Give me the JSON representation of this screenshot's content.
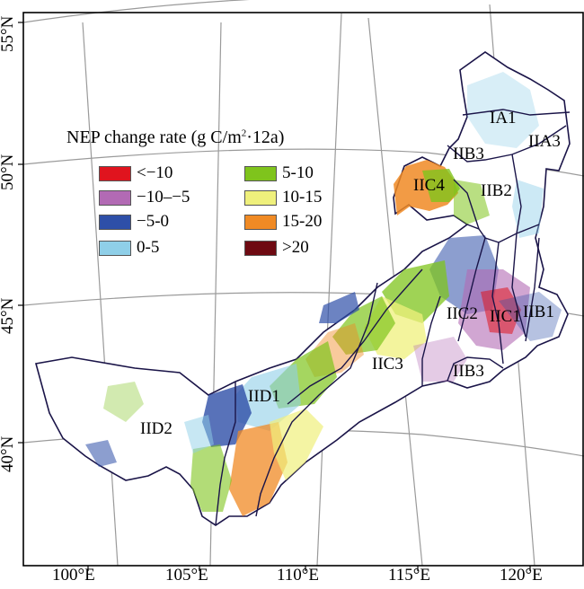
{
  "map": {
    "legend": {
      "title_main": "NEP change rate (g C/m",
      "title_sup": "2",
      "title_tail": "·12a)",
      "items": [
        {
          "label": "<−10",
          "color": "#e0141e"
        },
        {
          "label": "5-10",
          "color": "#7fc41c"
        },
        {
          "label": "−10–−5",
          "color": "#b26ab4"
        },
        {
          "label": "10-15",
          "color": "#eff07c"
        },
        {
          "label": "−5-0",
          "color": "#2e4fa8"
        },
        {
          "label": "15-20",
          "color": "#f08a24"
        },
        {
          "label": "0-5",
          "color": "#8fcfe8"
        },
        {
          "label": ">20",
          "color": "#6e0a12"
        }
      ]
    },
    "longitude_labels": [
      "100°E",
      "105°E",
      "110°E",
      "115°E",
      "120°E"
    ],
    "latitude_labels": [
      "55°N",
      "50°N",
      "45°N",
      "40°N"
    ],
    "regions": [
      "IA1",
      "IIA3",
      "IIB3",
      "IIC4",
      "IIB2",
      "IIC2",
      "IIC1",
      "IIB1",
      "IIC3",
      "IIB3",
      "IID1",
      "IID2"
    ],
    "colors": {
      "boundary": "#1a1448",
      "graticule": "#9a9a9a",
      "frame": "#000000"
    }
  }
}
